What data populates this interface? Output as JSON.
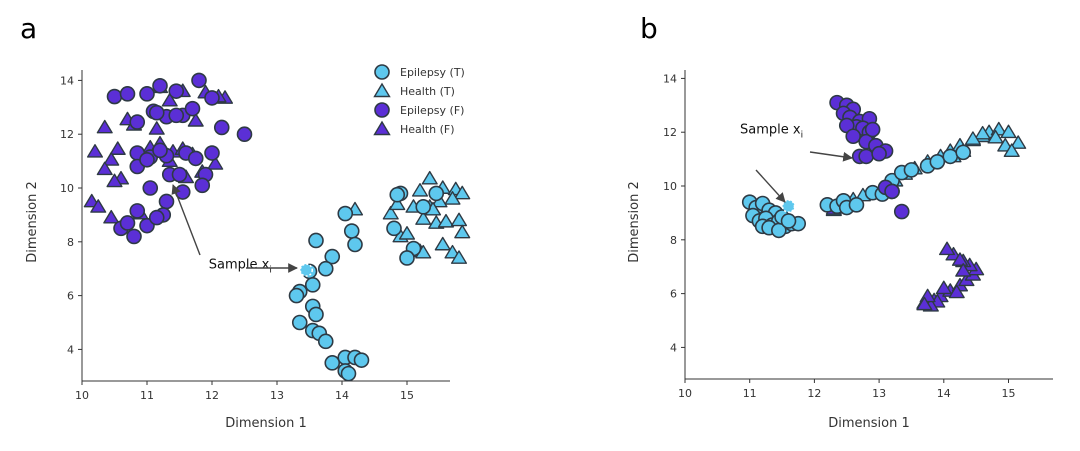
{
  "colors": {
    "teal": "#5ec8ee",
    "purple": "#5b2fd6",
    "stroke": "#2e3a44",
    "arrow": "#444444"
  },
  "chart_data": [
    {
      "type": "scatter",
      "panel_label": "a",
      "xlabel": "Dimension 1",
      "ylabel": "Dimension 2",
      "xlim": [
        10,
        15.7
      ],
      "ylim": [
        2.9,
        14.4
      ],
      "xticks": [
        10,
        11,
        12,
        13,
        14,
        15
      ],
      "yticks": [
        4,
        6,
        8,
        10,
        12,
        14
      ],
      "grid": false,
      "legend": {
        "placement": "top-right",
        "entries": [
          {
            "label": "Epilepsy (T)",
            "marker": "circle",
            "color": "teal"
          },
          {
            "label": "Health (T)",
            "marker": "triangle",
            "color": "teal"
          },
          {
            "label": "Epilepsy (F)",
            "marker": "circle",
            "color": "purple"
          },
          {
            "label": "Health (F)",
            "marker": "triangle",
            "color": "purple"
          }
        ]
      },
      "annotations": [
        {
          "text": "Sample x",
          "subscript": "i",
          "target": [
            13.45,
            6.95
          ],
          "text_at": [
            11.95,
            7.0
          ]
        }
      ],
      "series": [
        {
          "name": "Epilepsy (T)",
          "marker": "circle",
          "color": "teal",
          "x": [
            13.5,
            13.6,
            14.05,
            14.15,
            14.2,
            13.85,
            13.75,
            13.55,
            13.35,
            13.3,
            13.55,
            13.6,
            13.35,
            13.55,
            13.65,
            13.75,
            13.85,
            14.05,
            14.2,
            14.3,
            14.05,
            14.1,
            14.9,
            14.85,
            15.45,
            15.25,
            15.1,
            15.0,
            14.8
          ],
          "y": [
            6.9,
            8.05,
            9.05,
            8.4,
            7.9,
            7.45,
            7.0,
            6.4,
            6.15,
            6.0,
            5.6,
            5.3,
            5.0,
            4.7,
            4.6,
            4.3,
            3.5,
            3.7,
            3.7,
            3.6,
            3.2,
            3.1,
            9.8,
            9.75,
            9.8,
            9.3,
            7.75,
            7.4,
            8.5
          ]
        },
        {
          "name": "Health (T)",
          "marker": "triangle",
          "color": "teal",
          "x": [
            14.2,
            15.2,
            15.35,
            15.55,
            15.75,
            15.85,
            15.7,
            15.5,
            15.35,
            15.4,
            15.1,
            15.25,
            15.45,
            15.6,
            15.8,
            15.85,
            15.55,
            15.7,
            15.8,
            15.2,
            14.9,
            14.75,
            14.85,
            15.0,
            15.25
          ],
          "y": [
            9.2,
            9.9,
            10.35,
            10.0,
            9.95,
            9.8,
            9.6,
            9.5,
            9.3,
            9.2,
            9.3,
            8.85,
            8.7,
            8.75,
            8.8,
            8.35,
            7.9,
            7.6,
            7.4,
            7.65,
            8.2,
            9.05,
            9.4,
            8.3,
            7.6
          ]
        },
        {
          "name": "Epilepsy (F)",
          "marker": "circle",
          "color": "purple",
          "x": [
            10.5,
            10.7,
            11.0,
            11.2,
            11.45,
            11.8,
            12.0,
            11.55,
            11.7,
            11.3,
            11.1,
            10.85,
            11.05,
            10.85,
            11.3,
            11.6,
            11.75,
            12.15,
            12.5,
            11.35,
            11.5,
            11.9,
            11.05,
            11.3,
            11.25,
            10.85,
            10.6,
            10.7,
            11.0,
            11.15,
            10.8,
            10.85,
            11.0,
            11.2,
            11.55,
            11.85,
            12.0,
            11.45,
            11.15
          ],
          "y": [
            13.4,
            13.5,
            13.5,
            13.8,
            13.6,
            14.0,
            13.35,
            12.7,
            12.95,
            12.65,
            12.85,
            12.45,
            11.15,
            11.3,
            11.2,
            11.3,
            11.1,
            12.25,
            12.0,
            10.5,
            10.5,
            10.5,
            10.0,
            9.5,
            9.0,
            9.15,
            8.5,
            8.7,
            8.6,
            8.9,
            8.2,
            10.8,
            11.05,
            11.4,
            9.85,
            10.1,
            11.3,
            12.7,
            12.8
          ]
        },
        {
          "name": "Health (F)",
          "marker": "triangle",
          "color": "purple",
          "x": [
            11.2,
            11.35,
            11.55,
            11.9,
            12.2,
            12.1,
            11.75,
            11.15,
            10.8,
            10.7,
            10.35,
            10.55,
            10.2,
            10.45,
            10.35,
            10.6,
            10.5,
            10.15,
            10.25,
            10.45,
            11.05,
            11.2,
            11.4,
            11.55,
            11.7,
            11.85,
            12.05,
            11.35,
            11.6,
            10.9
          ],
          "y": [
            13.75,
            13.25,
            13.6,
            13.55,
            13.35,
            13.4,
            12.5,
            12.2,
            12.35,
            12.55,
            12.25,
            11.45,
            11.35,
            11.05,
            10.7,
            10.35,
            10.25,
            9.5,
            9.3,
            8.9,
            11.5,
            11.65,
            11.35,
            11.45,
            11.25,
            10.6,
            10.9,
            11.0,
            10.4,
            9.05
          ]
        }
      ]
    },
    {
      "type": "scatter",
      "panel_label": "b",
      "xlabel": "Dimension 1",
      "ylabel": "Dimension 2",
      "xlim": [
        10,
        15.7
      ],
      "ylim": [
        2.9,
        14.4
      ],
      "xticks": [
        10,
        11,
        12,
        13,
        14,
        15
      ],
      "yticks": [
        4,
        6,
        8,
        10,
        12,
        14
      ],
      "grid": false,
      "annotations": [
        {
          "text": "Sample x",
          "subscript": "i",
          "target": [
            11.6,
            9.25
          ],
          "text_at": [
            10.85,
            11.95
          ]
        },
        {
          "text": "",
          "subscript": "",
          "target": [
            12.65,
            11.15
          ],
          "text_at": [
            12.0,
            11.25
          ]
        }
      ],
      "series": [
        {
          "name": "Epilepsy (T)",
          "marker": "circle",
          "color": "teal",
          "x": [
            11.0,
            11.1,
            11.2,
            11.3,
            11.4,
            11.05,
            11.15,
            11.25,
            11.35,
            11.45,
            11.55,
            11.65,
            11.75,
            11.2,
            11.3,
            11.45,
            11.5,
            11.6,
            12.2,
            12.35,
            12.45,
            12.9,
            13.2,
            13.35,
            13.5,
            13.75,
            13.9,
            14.1,
            14.3,
            12.5,
            12.65,
            13.05,
            13.2
          ],
          "y": [
            9.4,
            9.2,
            9.35,
            9.1,
            9.0,
            8.9,
            8.7,
            8.8,
            8.55,
            8.7,
            8.5,
            8.6,
            8.6,
            8.5,
            8.45,
            8.35,
            8.85,
            8.7,
            9.3,
            9.25,
            9.45,
            9.75,
            10.2,
            10.5,
            10.6,
            10.75,
            10.9,
            11.1,
            11.25,
            9.2,
            9.3,
            9.7,
            9.8
          ]
        },
        {
          "name": "Health (T)",
          "marker": "triangle",
          "color": "teal",
          "x": [
            12.3,
            12.45,
            12.6,
            12.75,
            13.25,
            13.4,
            13.55,
            13.75,
            13.95,
            14.1,
            14.25,
            14.45,
            14.6,
            14.7,
            14.85,
            15.0,
            14.95,
            14.8,
            14.6,
            14.45,
            15.15,
            15.05,
            14.3,
            14.15
          ],
          "y": [
            9.1,
            9.3,
            9.5,
            9.65,
            10.2,
            10.45,
            10.65,
            10.9,
            11.1,
            11.3,
            11.5,
            11.7,
            11.85,
            12.0,
            12.1,
            12.0,
            11.5,
            11.8,
            11.95,
            11.75,
            11.6,
            11.3,
            11.3,
            11.1
          ]
        },
        {
          "name": "Epilepsy (F)",
          "marker": "circle",
          "color": "purple",
          "x": [
            12.35,
            12.5,
            12.6,
            12.45,
            12.55,
            12.7,
            12.85,
            12.65,
            12.75,
            12.85,
            12.5,
            12.6,
            12.8,
            12.95,
            13.1,
            12.7,
            12.8,
            13.0,
            13.1,
            13.2,
            13.35,
            12.9
          ],
          "y": [
            13.1,
            13.0,
            12.85,
            12.7,
            12.55,
            12.4,
            12.5,
            12.2,
            12.15,
            12.0,
            12.25,
            11.85,
            11.65,
            11.5,
            11.3,
            11.1,
            11.1,
            11.2,
            9.95,
            9.8,
            9.05,
            12.1
          ]
        },
        {
          "name": "Health (F)",
          "marker": "triangle",
          "color": "purple",
          "x": [
            13.7,
            13.85,
            13.95,
            14.1,
            14.25,
            14.35,
            14.45,
            14.5,
            14.4,
            14.3,
            14.15,
            14.05,
            13.9,
            13.8,
            14.2,
            14.25,
            14.3,
            13.75,
            13.7,
            14.0,
            12.3
          ],
          "y": [
            5.65,
            5.75,
            5.9,
            6.1,
            6.3,
            6.5,
            6.7,
            6.9,
            7.05,
            7.2,
            7.45,
            7.65,
            5.7,
            5.55,
            6.05,
            7.25,
            6.85,
            5.9,
            5.6,
            6.2,
            9.15
          ]
        }
      ]
    }
  ]
}
